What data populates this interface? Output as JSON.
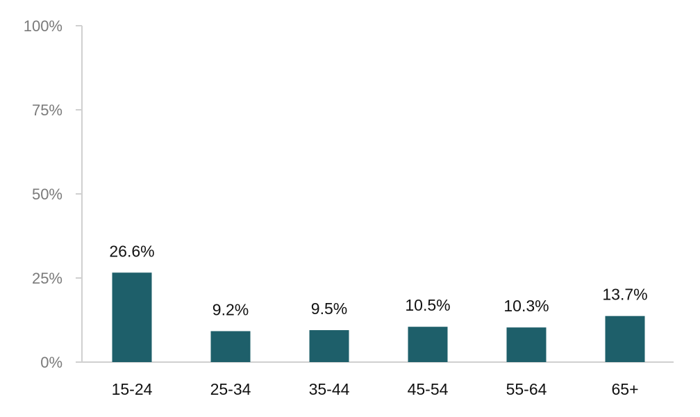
{
  "chart_data": {
    "type": "bar",
    "categories": [
      "15-24",
      "25-34",
      "35-44",
      "45-54",
      "55-64",
      "65+"
    ],
    "values": [
      26.6,
      9.2,
      9.5,
      10.5,
      10.3,
      13.7
    ],
    "data_labels": [
      "26.6%",
      "9.2%",
      "9.5%",
      "10.5%",
      "10.3%",
      "13.7%"
    ],
    "title": "",
    "xlabel": "",
    "ylabel": "",
    "ylim": [
      0,
      100
    ],
    "yticks": [
      0,
      25,
      50,
      75,
      100
    ],
    "ytick_labels": [
      "0%",
      "25%",
      "50%",
      "75%",
      "100%"
    ],
    "grid": false,
    "legend": "none",
    "colors": {
      "bar": "#1e5f6a",
      "axis": "#d0d0d0"
    }
  }
}
